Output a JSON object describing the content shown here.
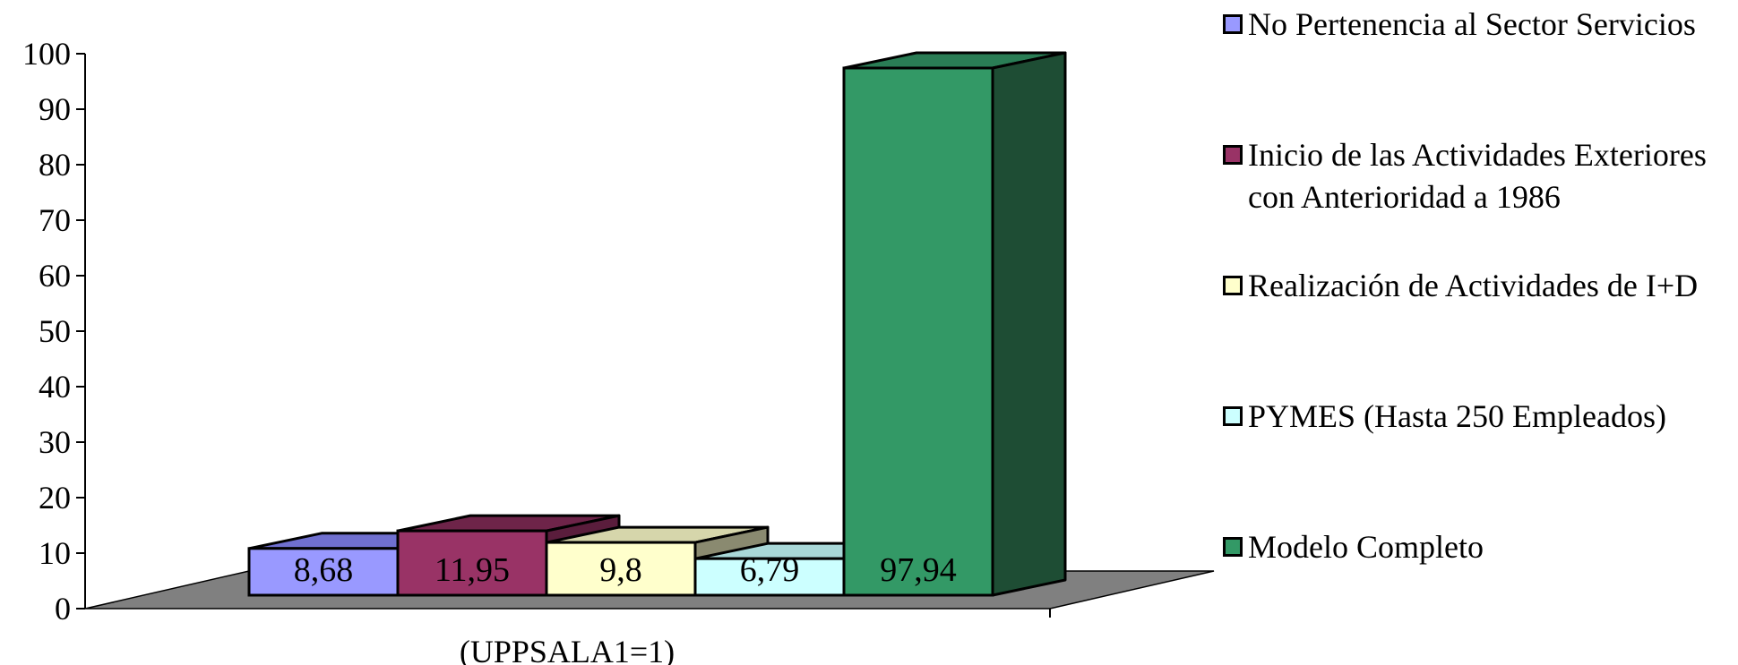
{
  "chart_data": {
    "type": "bar",
    "categories": [
      "(UPPSALA1=1)"
    ],
    "series": [
      {
        "name": "No Pertenencia al Sector Servicios",
        "values": [
          8.68
        ],
        "label": "8,68",
        "color": "#9999ff",
        "top": "#7070d0",
        "side": "#5a5aa8"
      },
      {
        "name": "Inicio de las Actividades Exteriores con Anterioridad a 1986",
        "values": [
          11.95
        ],
        "label": "11,95",
        "color": "#993366",
        "top": "#6e2449",
        "side": "#5a1d3c"
      },
      {
        "name": "Realización de Actividades de I+D",
        "values": [
          9.8
        ],
        "label": "9,8",
        "color": "#ffffcc",
        "top": "#d6d6ab",
        "side": "#8a8a70"
      },
      {
        "name": "PYMES (Hasta 250 Empleados)",
        "values": [
          6.79
        ],
        "label": "6,79",
        "color": "#ccffff",
        "top": "#a9d8d8",
        "side": "#7aa8a8"
      },
      {
        "name": "Modelo Completo",
        "values": [
          97.94
        ],
        "label": "97,94",
        "color": "#339966",
        "top": "#2a7d55",
        "side": "#1e4d34"
      }
    ],
    "ylim": [
      0,
      100
    ],
    "yticks": [
      "0",
      "10",
      "20",
      "30",
      "40",
      "50",
      "60",
      "70",
      "80",
      "90",
      "100"
    ],
    "floor_color": "#808080",
    "legend_position": "right"
  }
}
